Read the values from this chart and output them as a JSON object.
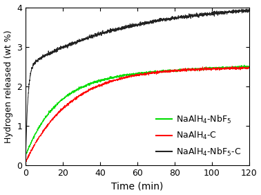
{
  "title": "",
  "xlabel": "Time (min)",
  "ylabel": "Hydrogen released (wt %)",
  "xlim": [
    0,
    120
  ],
  "ylim": [
    0,
    4.0
  ],
  "yticks": [
    0,
    1,
    2,
    3,
    4
  ],
  "xticks": [
    0,
    20,
    40,
    60,
    80,
    100,
    120
  ],
  "legend_labels": [
    "NaAlH$_4$-NbF$_5$",
    "NaAlH$_4$-C",
    "NaAlH$_4$-NbF$_5$-C"
  ],
  "legend_colors": [
    "#00dd00",
    "#ff0000",
    "#222222"
  ],
  "background_color": "#ffffff",
  "figsize": [
    3.78,
    2.82
  ],
  "dpi": 100
}
